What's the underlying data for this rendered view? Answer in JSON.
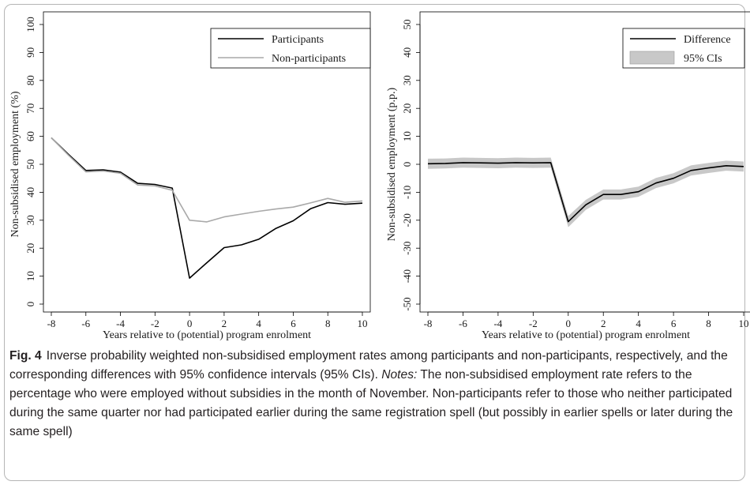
{
  "chart_data": [
    {
      "type": "line",
      "title": "",
      "xlabel": "Years relative to (potential) program enrolment",
      "ylabel": "Non-subsidised employment (%)",
      "xlim": [
        -8,
        10
      ],
      "ylim": [
        0,
        100
      ],
      "xticks": [
        -8,
        -6,
        -4,
        -2,
        0,
        2,
        4,
        6,
        8,
        10
      ],
      "yticks": [
        0,
        10,
        20,
        30,
        40,
        50,
        60,
        70,
        80,
        90,
        100
      ],
      "legend": "top-right",
      "x": [
        -8,
        -7,
        -6,
        -5,
        -4,
        -3,
        -2,
        -1,
        0,
        1,
        2,
        3,
        4,
        5,
        6,
        7,
        8,
        9,
        10
      ],
      "series": [
        {
          "name": "Participants",
          "color": "#000000",
          "values": [
            59.5,
            53.5,
            47.8,
            48.0,
            47.2,
            43.2,
            42.8,
            41.5,
            9.3,
            14.8,
            20.2,
            21.2,
            23.2,
            27.1,
            29.8,
            34.1,
            36.3,
            35.7,
            36.1
          ]
        },
        {
          "name": "Non-participants",
          "color": "#a9a9a9",
          "values": [
            59.5,
            53.2,
            47.3,
            47.6,
            46.8,
            42.6,
            42.3,
            40.7,
            30.0,
            29.4,
            31.2,
            32.2,
            33.2,
            34.0,
            34.7,
            36.2,
            37.8,
            36.4,
            36.9
          ]
        }
      ]
    },
    {
      "type": "line",
      "title": "",
      "xlabel": "Years relative to (potential) program enrolment",
      "ylabel": "Non-subsidised employment (p.p.)",
      "xlim": [
        -8,
        10
      ],
      "ylim": [
        -50,
        50
      ],
      "xticks": [
        -8,
        -6,
        -4,
        -2,
        0,
        2,
        4,
        6,
        8,
        10
      ],
      "yticks": [
        -50,
        -40,
        -30,
        -20,
        -10,
        0,
        10,
        20,
        30,
        40,
        50
      ],
      "legend": "top-right",
      "x": [
        -8,
        -7,
        -6,
        -5,
        -4,
        -3,
        -2,
        -1,
        0,
        1,
        2,
        3,
        4,
        5,
        6,
        7,
        8,
        9,
        10
      ],
      "series": [
        {
          "name": "Difference",
          "color": "#000000",
          "values": [
            0.2,
            0.3,
            0.6,
            0.5,
            0.4,
            0.6,
            0.5,
            0.6,
            -20.5,
            -14.5,
            -10.8,
            -10.8,
            -9.8,
            -6.7,
            -5.0,
            -2.2,
            -1.3,
            -0.5,
            -0.8
          ]
        },
        {
          "name": "95% CIs",
          "color": "#c8c8c8",
          "lower": [
            -1.6,
            -1.5,
            -1.2,
            -1.3,
            -1.4,
            -1.2,
            -1.3,
            -1.2,
            -22.5,
            -16.3,
            -12.6,
            -12.6,
            -11.6,
            -8.5,
            -6.8,
            -4.0,
            -3.1,
            -2.3,
            -2.6
          ],
          "upper": [
            2.0,
            2.1,
            2.4,
            2.3,
            2.2,
            2.4,
            2.3,
            2.4,
            -18.5,
            -12.7,
            -9.0,
            -9.0,
            -8.0,
            -4.9,
            -3.2,
            -0.4,
            0.5,
            1.3,
            1.0
          ]
        }
      ]
    }
  ],
  "caption": {
    "label": "Fig. 4",
    "text": "Inverse probability weighted non-subsidised employment rates among participants and non-participants, respectively, and the corresponding differences with 95% confidence intervals (95% CIs).",
    "notes_label": "Notes:",
    "notes_text": "The non-subsidised employment rate refers to the percentage who were employed without subsidies in the month of November. Non-participants refer to those who neither participated during the same quarter nor had participated earlier during the same registration spell (but possibly in earlier spells or later during the same spell)"
  }
}
